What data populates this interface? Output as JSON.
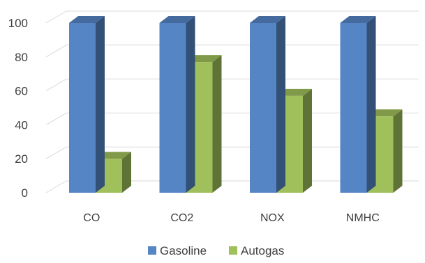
{
  "chart_data": {
    "type": "bar",
    "style": "3d-clustered-column",
    "categories": [
      "CO",
      "CO2",
      "NOX",
      "NMHC"
    ],
    "series": [
      {
        "name": "Gasoline",
        "color": "#5585c5",
        "values": [
          100,
          100,
          100,
          100
        ]
      },
      {
        "name": "Autogas",
        "color": "#a0c05c",
        "values": [
          20,
          77,
          57,
          45
        ]
      }
    ],
    "yticks": [
      0,
      20,
      40,
      60,
      80,
      100
    ],
    "ylim": [
      0,
      100
    ],
    "grid": true,
    "legend_position": "bottom"
  }
}
